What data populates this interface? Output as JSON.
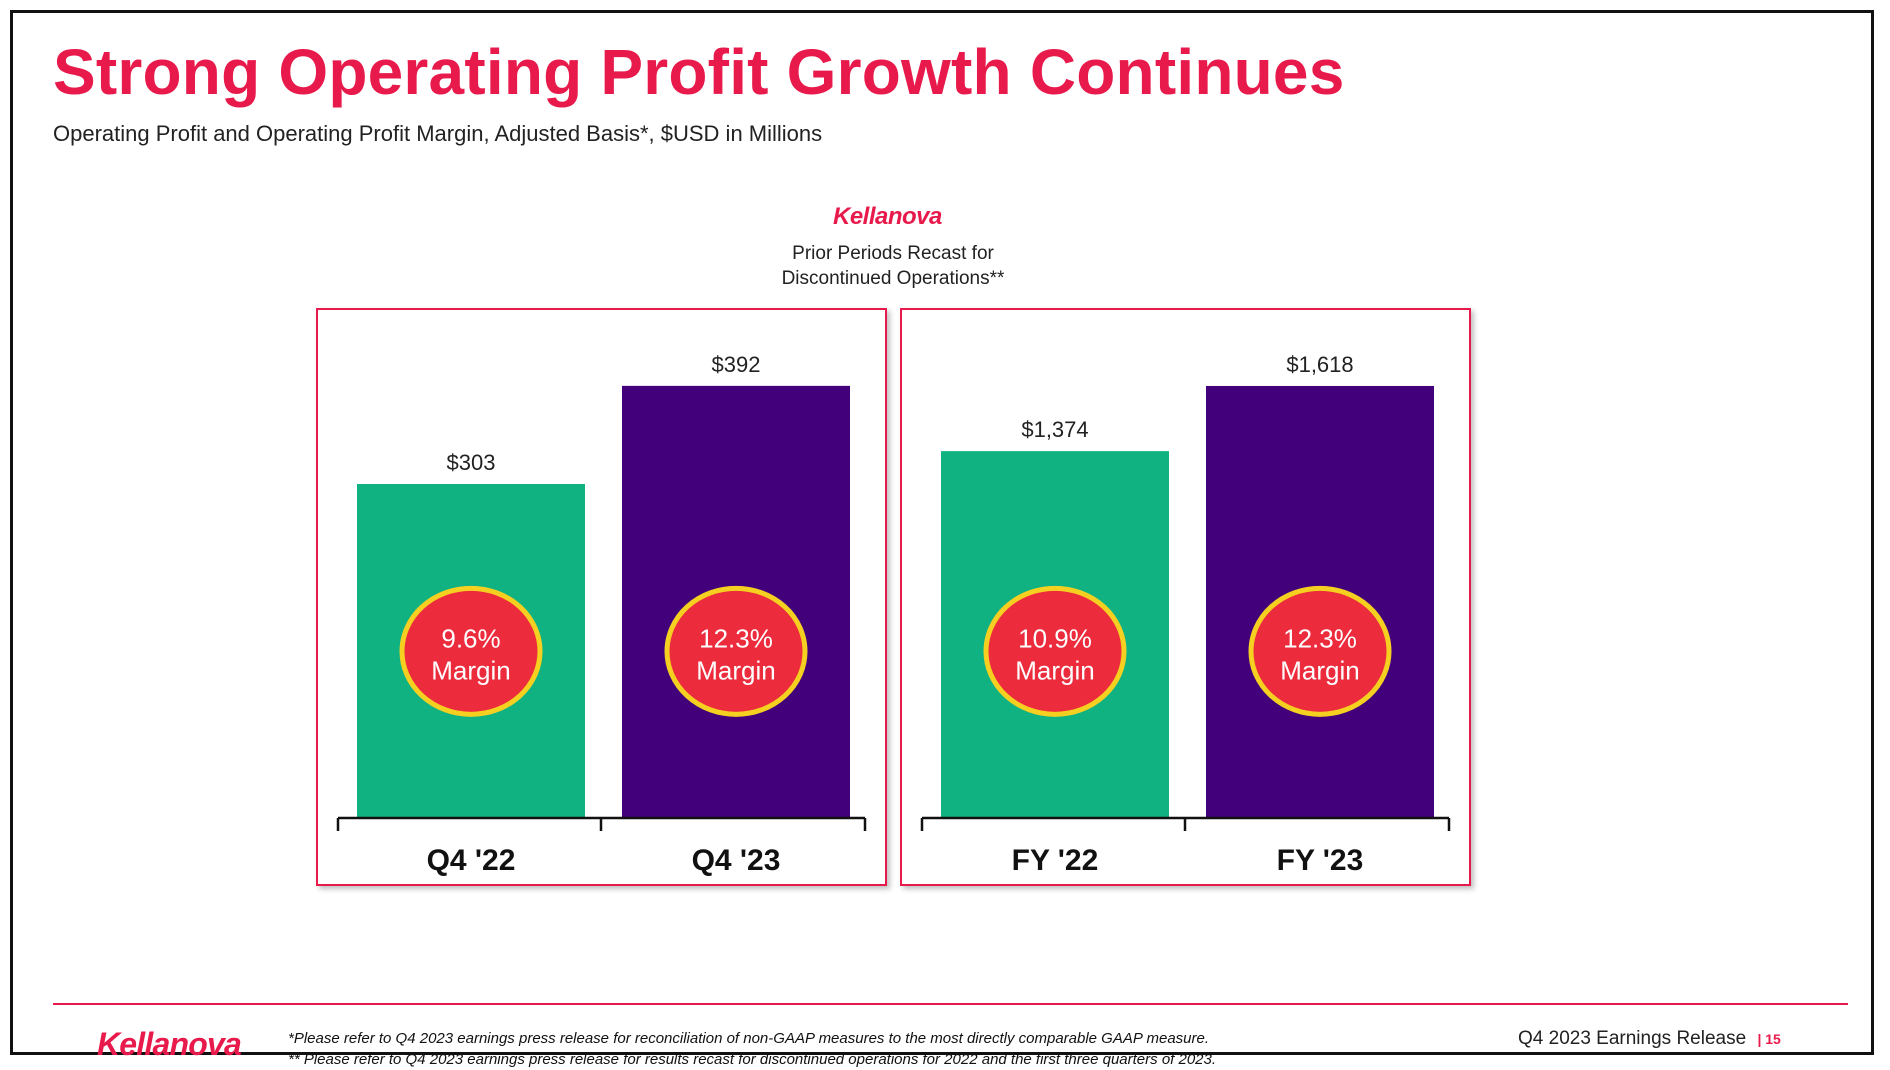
{
  "slide": {
    "title": "Strong Operating Profit Growth Continues",
    "subtitle": "Operating Profit and Operating Profit Margin, Adjusted Basis*, $USD in Millions",
    "brand": "Kellanova",
    "recast_note_line1": "Prior Periods Recast for",
    "recast_note_line2": "Discontinued Operations**"
  },
  "chart_data": [
    {
      "type": "bar",
      "categories": [
        "Q4 '22",
        "Q4 '23"
      ],
      "values": [
        303,
        392
      ],
      "value_labels": [
        "$303",
        "$392"
      ],
      "margin_value_labels": [
        "9.6%",
        "12.3%"
      ],
      "margin_word": "Margin",
      "ylim": [
        0,
        420
      ],
      "colors": [
        "#10b281",
        "#42007a"
      ]
    },
    {
      "type": "bar",
      "categories": [
        "FY '22",
        "FY '23"
      ],
      "values": [
        1374,
        1618
      ],
      "value_labels": [
        "$1,374",
        "$1,618"
      ],
      "margin_value_labels": [
        "10.9%",
        "12.3%"
      ],
      "margin_word": "Margin",
      "ylim": [
        0,
        1734
      ],
      "colors": [
        "#10b281",
        "#42007a"
      ]
    }
  ],
  "badge_colors": {
    "fill": "#ec2c3c",
    "ring": "#f5d020"
  },
  "footer": {
    "brand": "Kellanova",
    "footnote1": "*Please refer to Q4 2023 earnings press release for reconciliation of non-GAAP measures to the most directly comparable GAAP measure.",
    "footnote2": "** Please refer to Q4 2023 earnings press release for results recast for discontinued operations for 2022 and the first three quarters of  2023.",
    "release": "Q4 2023 Earnings Release",
    "page": "15"
  }
}
